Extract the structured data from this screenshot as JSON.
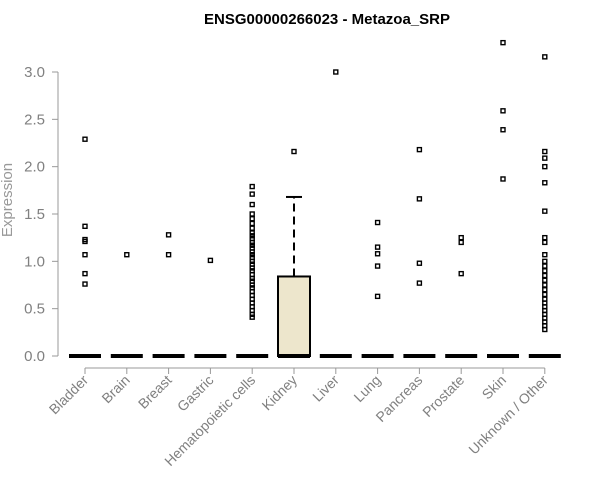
{
  "chart_data": {
    "type": "boxplot",
    "title": "ENSG00000266023 - Metazoa_SRP",
    "xlabel": "",
    "ylabel": "Expression",
    "ylim": [
      0,
      3.35
    ],
    "yticks": [
      0.0,
      0.5,
      1.0,
      1.5,
      2.0,
      2.5,
      3.0
    ],
    "ytick_labels": [
      "0.0",
      "0.5",
      "1.0",
      "1.5",
      "2.0",
      "2.5",
      "3.0"
    ],
    "grid": false,
    "legend": "none",
    "colors": {
      "box_fill": "#ede6cc",
      "stroke": "#000000",
      "axis": "#999999"
    },
    "categories": [
      "Bladder",
      "Brain",
      "Breast",
      "Gastric",
      "Hematopoietic cells",
      "Kidney",
      "Liver",
      "Lung",
      "Pancreas",
      "Prostate",
      "Skin",
      "Unknown / Other"
    ],
    "boxes": [
      {
        "category": "Bladder",
        "q1": 0,
        "median": 0,
        "q3": 0,
        "whisker_low": 0,
        "whisker_high": 0,
        "outliers": [
          2.29,
          1.37,
          1.23,
          1.21,
          1.07,
          0.87,
          0.76
        ]
      },
      {
        "category": "Brain",
        "q1": 0,
        "median": 0,
        "q3": 0,
        "whisker_low": 0,
        "whisker_high": 0,
        "outliers": [
          1.07
        ]
      },
      {
        "category": "Breast",
        "q1": 0,
        "median": 0,
        "q3": 0,
        "whisker_low": 0,
        "whisker_high": 0,
        "outliers": [
          1.28,
          1.07
        ]
      },
      {
        "category": "Gastric",
        "q1": 0,
        "median": 0,
        "q3": 0,
        "whisker_low": 0,
        "whisker_high": 0,
        "outliers": [
          1.01
        ]
      },
      {
        "category": "Hematopoietic cells",
        "q1": 0,
        "median": 0,
        "q3": 0,
        "whisker_low": 0,
        "whisker_high": 0,
        "outliers": [
          1.79,
          1.71,
          1.6,
          1.5,
          1.45,
          1.4,
          1.35,
          1.3,
          1.27,
          1.24,
          1.2,
          1.17,
          1.14,
          1.1,
          1.07,
          1.04,
          1.0,
          0.97,
          0.93,
          0.9,
          0.86,
          0.82,
          0.79,
          0.75,
          0.72,
          0.68,
          0.64,
          0.6,
          0.56,
          0.52,
          0.48,
          0.44,
          0.41
        ]
      },
      {
        "category": "Kidney",
        "q1": 0,
        "median": 0,
        "q3": 0.84,
        "whisker_low": 0,
        "whisker_high": 1.68,
        "outliers": [
          2.16
        ]
      },
      {
        "category": "Liver",
        "q1": 0,
        "median": 0,
        "q3": 0,
        "whisker_low": 0,
        "whisker_high": 0,
        "outliers": [
          3.0
        ]
      },
      {
        "category": "Lung",
        "q1": 0,
        "median": 0,
        "q3": 0,
        "whisker_low": 0,
        "whisker_high": 0,
        "outliers": [
          1.41,
          1.15,
          1.08,
          0.95,
          0.63
        ]
      },
      {
        "category": "Pancreas",
        "q1": 0,
        "median": 0,
        "q3": 0,
        "whisker_low": 0,
        "whisker_high": 0,
        "outliers": [
          2.18,
          1.66,
          0.98,
          0.77
        ]
      },
      {
        "category": "Prostate",
        "q1": 0,
        "median": 0,
        "q3": 0,
        "whisker_low": 0,
        "whisker_high": 0,
        "outliers": [
          1.25,
          1.2,
          0.87
        ]
      },
      {
        "category": "Skin",
        "q1": 0,
        "median": 0,
        "q3": 0,
        "whisker_low": 0,
        "whisker_high": 0,
        "outliers": [
          3.31,
          2.59,
          2.39,
          1.87
        ]
      },
      {
        "category": "Unknown / Other",
        "q1": 0,
        "median": 0,
        "q3": 0,
        "whisker_low": 0,
        "whisker_high": 0,
        "outliers": [
          3.16,
          2.16,
          2.09,
          2.0,
          1.83,
          1.53,
          1.25,
          1.2,
          1.07,
          1.0,
          0.95,
          0.9,
          0.85,
          0.8,
          0.75,
          0.7,
          0.65,
          0.6,
          0.56,
          0.52,
          0.48,
          0.44,
          0.4,
          0.36,
          0.32,
          0.28
        ]
      }
    ]
  }
}
